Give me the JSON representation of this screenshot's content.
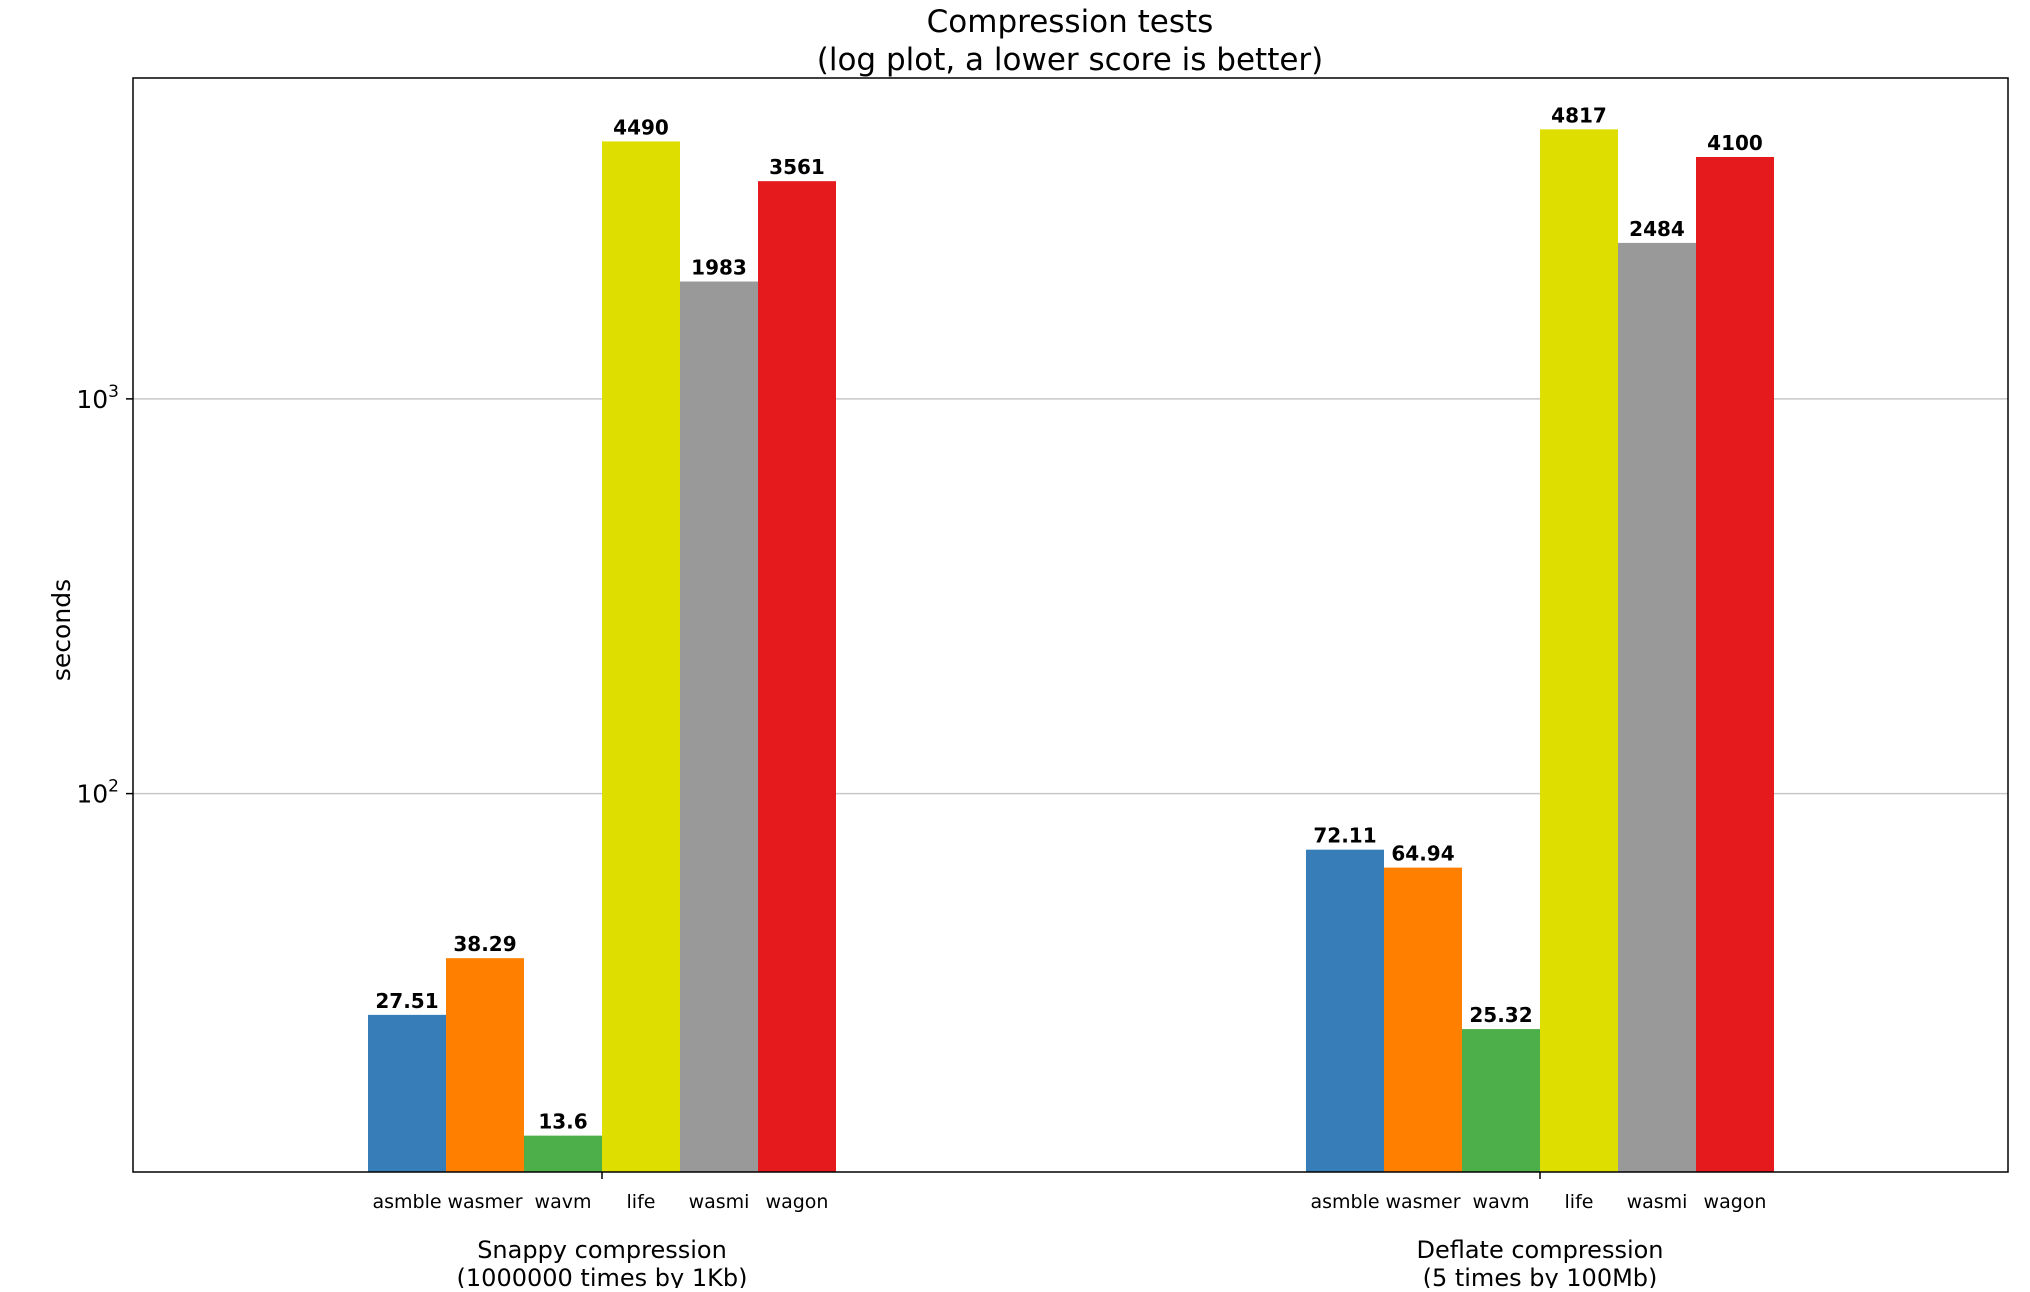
{
  "chart_data": {
    "type": "bar",
    "title": "Compression tests",
    "subtitle": "(log plot, a lower score is better)",
    "ylabel": "seconds",
    "yscale": "log",
    "ylim": [
      11,
      6500
    ],
    "yticks": [
      {
        "value": 100,
        "base": "10",
        "exp": "2"
      },
      {
        "value": 1000,
        "base": "10",
        "exp": "3"
      }
    ],
    "grid": "horizontal",
    "groups": [
      {
        "name": "Snappy compression",
        "sublabel": "(1000000 times by 1Kb)",
        "categories": [
          "asmble",
          "wasmer",
          "wavm",
          "life",
          "wasmi",
          "wagon"
        ],
        "values": [
          27.51,
          38.29,
          13.6,
          4490,
          1983,
          3561
        ],
        "value_labels": [
          "27.51",
          "38.29",
          "13.6",
          "4490",
          "1983",
          "3561"
        ]
      },
      {
        "name": "Deflate compression",
        "sublabel": "(5 times by 100Mb)",
        "categories": [
          "asmble",
          "wasmer",
          "wavm",
          "life",
          "wasmi",
          "wagon"
        ],
        "values": [
          72.11,
          64.94,
          25.32,
          4817,
          2484,
          4100
        ],
        "value_labels": [
          "72.11",
          "64.94",
          "25.32",
          "4817",
          "2484",
          "4100"
        ]
      }
    ],
    "colors": {
      "asmble": "#377eb8",
      "wasmer": "#ff7f00",
      "wavm": "#4daf4a",
      "life": "#dede00",
      "wasmi": "#999999",
      "wagon": "#e41a1c"
    }
  }
}
